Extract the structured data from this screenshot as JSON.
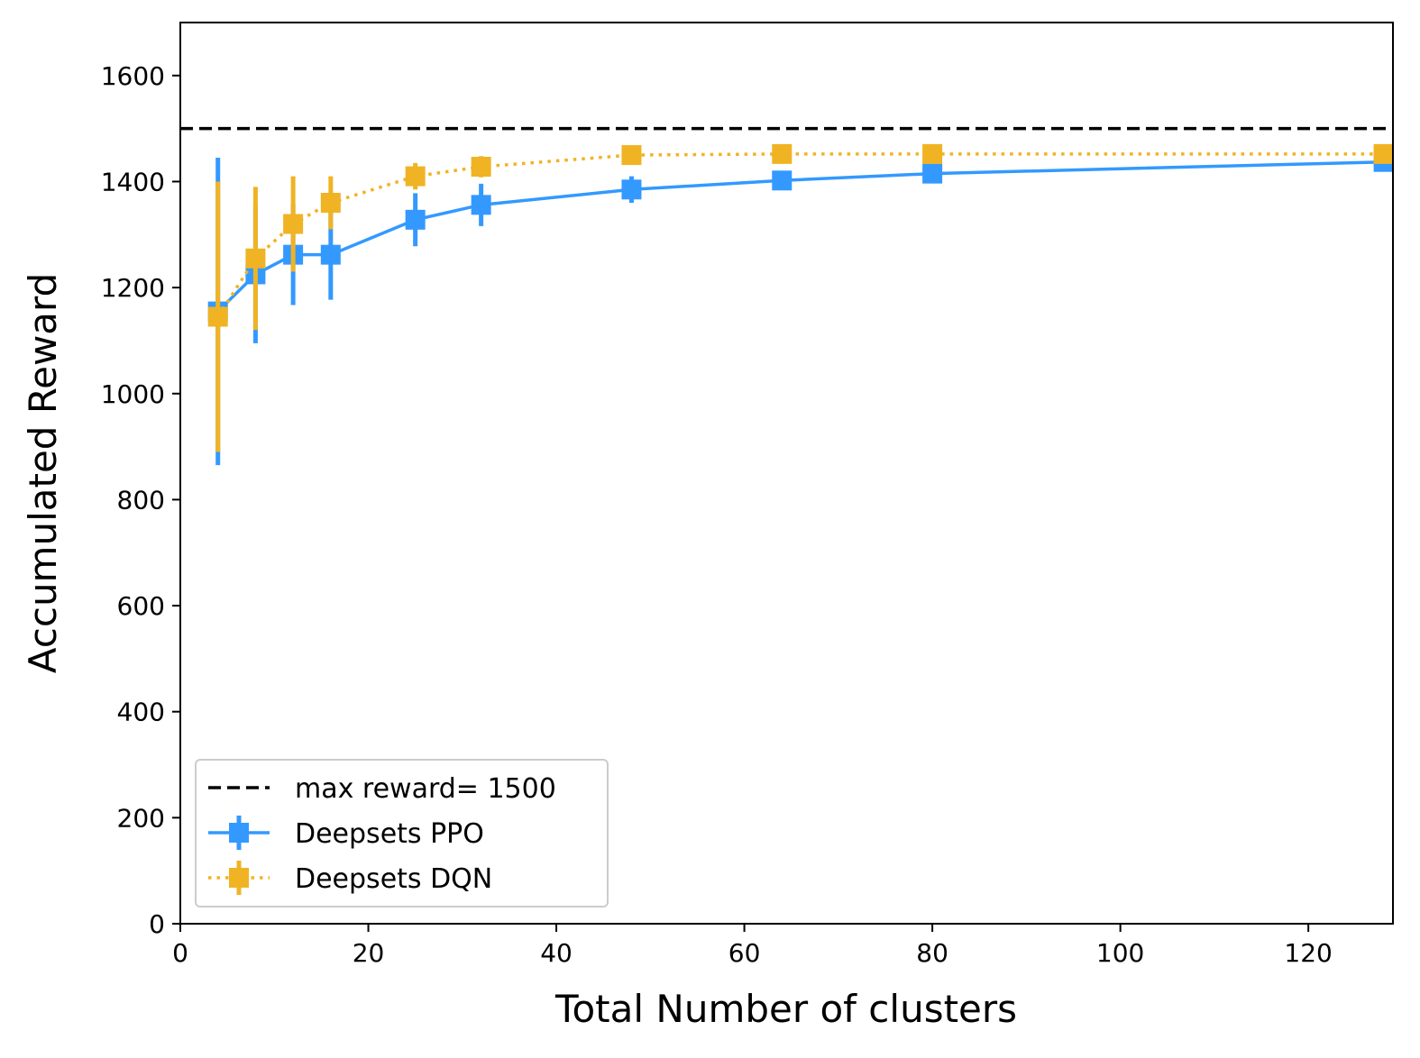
{
  "chart_data": {
    "type": "line",
    "title": "",
    "xlabel": "Total Number of clusters",
    "ylabel": "Accumulated Reward",
    "xlim": [
      0,
      129
    ],
    "ylim": [
      0,
      1700
    ],
    "x_ticks": [
      0,
      20,
      40,
      60,
      80,
      100,
      120
    ],
    "y_ticks": [
      0,
      200,
      400,
      600,
      800,
      1000,
      1200,
      1400,
      1600
    ],
    "grid": false,
    "legend_position": "lower-left",
    "reference_line": {
      "name": "max reward= 1500",
      "value": 1500,
      "color": "#000000",
      "style": "dashed"
    },
    "series": [
      {
        "name": "Deepsets PPO",
        "color": "#3399ff",
        "line_style": "solid",
        "marker": "square",
        "x": [
          4,
          8,
          12,
          16,
          25,
          32,
          48,
          64,
          80,
          128
        ],
        "y": [
          1155,
          1225,
          1262,
          1262,
          1328,
          1356,
          1385,
          1402,
          1415,
          1437
        ],
        "error": [
          290,
          130,
          95,
          85,
          50,
          40,
          25,
          15,
          12,
          10
        ]
      },
      {
        "name": "Deepsets DQN",
        "color": "#f0b323",
        "line_style": "dotted",
        "marker": "square",
        "x": [
          4,
          8,
          12,
          16,
          25,
          32,
          48,
          64,
          80,
          128
        ],
        "y": [
          1145,
          1255,
          1320,
          1360,
          1410,
          1428,
          1450,
          1452,
          1452,
          1452
        ],
        "error": [
          255,
          135,
          90,
          50,
          25,
          20,
          10,
          8,
          6,
          6
        ]
      }
    ]
  }
}
